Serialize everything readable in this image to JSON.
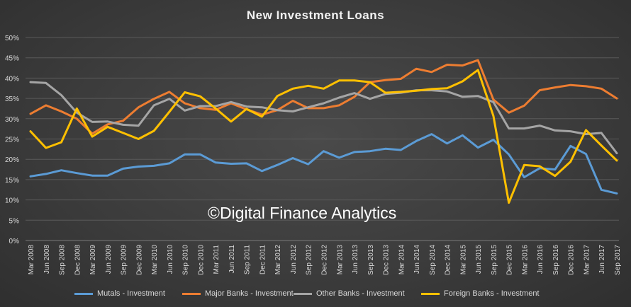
{
  "chart_data": {
    "type": "line",
    "title": "New Investment Loans",
    "xlabel": "",
    "ylabel": "",
    "ylim": [
      0,
      50
    ],
    "y_ticks": [
      "0%",
      "5%",
      "10%",
      "15%",
      "20%",
      "25%",
      "30%",
      "35%",
      "40%",
      "45%",
      "50%"
    ],
    "grid": "horizontal",
    "legend_position": "bottom",
    "categories": [
      "Mar 2008",
      "Jun 2008",
      "Sep 2008",
      "Dec 2008",
      "Mar 2009",
      "Jun 2009",
      "Sep 2009",
      "Dec 2009",
      "Mar 2010",
      "Jun 2010",
      "Sep 2010",
      "Dec 2010",
      "Mar 2011",
      "Jun 2011",
      "Sep 2011",
      "Dec 2011",
      "Mar 2012",
      "Jun 2012",
      "Sep 2012",
      "Dec 2012",
      "Mar 2013",
      "Jun 2013",
      "Sep 2013",
      "Dec 2013",
      "Mar 2014",
      "Jun 2014",
      "Sep 2014",
      "Dec 2014",
      "Mar 2015",
      "Jun 2015",
      "Sep 2015",
      "Dec 2015",
      "Mar 2016",
      "Jun 2016",
      "Sep 2016",
      "Dec 2016",
      "Mar 2017",
      "Jun 2017",
      "Sep 2017"
    ],
    "series": [
      {
        "name": "Mutals - Investment",
        "color": "#5b9bd5",
        "values": [
          15.8,
          16.4,
          17.3,
          16.6,
          16.0,
          16.0,
          17.7,
          18.2,
          18.4,
          19.0,
          21.2,
          21.2,
          19.2,
          18.9,
          19.0,
          17.1,
          18.6,
          20.3,
          18.8,
          22.0,
          20.4,
          21.8,
          22.0,
          22.6,
          22.3,
          24.5,
          26.2,
          23.9,
          25.9,
          22.9,
          24.8,
          21.2,
          15.6,
          17.8,
          17.5,
          23.3,
          21.3,
          12.5,
          11.6
        ]
      },
      {
        "name": "Major Banks - Investment",
        "color": "#ed7d31",
        "values": [
          31.2,
          33.3,
          31.8,
          30.0,
          26.3,
          28.6,
          29.5,
          32.8,
          34.9,
          36.6,
          33.8,
          32.6,
          32.2,
          33.8,
          32.3,
          31.0,
          32.1,
          34.4,
          32.6,
          32.6,
          33.3,
          35.4,
          39.0,
          39.5,
          39.8,
          42.3,
          41.5,
          43.3,
          43.1,
          44.4,
          34.7,
          31.5,
          33.2,
          37.0,
          37.7,
          38.3,
          38.0,
          37.4,
          35.0
        ]
      },
      {
        "name": "Other Banks - Investment",
        "color": "#a5a5a5",
        "values": [
          39.0,
          38.8,
          35.8,
          31.5,
          29.2,
          29.3,
          28.5,
          28.3,
          33.3,
          34.9,
          32.0,
          33.1,
          33.1,
          34.1,
          33.0,
          32.8,
          32.1,
          31.8,
          32.8,
          33.8,
          35.2,
          36.3,
          34.9,
          36.1,
          36.4,
          37.0,
          37.0,
          36.7,
          35.4,
          35.6,
          34.1,
          27.6,
          27.6,
          28.3,
          27.1,
          26.9,
          26.2,
          26.5,
          21.5
        ]
      },
      {
        "name": "Foreign Banks - Investment",
        "color": "#ffc000",
        "values": [
          26.9,
          22.8,
          24.2,
          32.5,
          25.6,
          28.0,
          26.5,
          25.0,
          27.0,
          31.7,
          36.5,
          35.5,
          32.5,
          29.3,
          32.4,
          30.5,
          35.6,
          37.4,
          38.1,
          37.4,
          39.4,
          39.4,
          39.0,
          36.4,
          36.6,
          36.9,
          37.3,
          37.5,
          39.2,
          42.0,
          30.7,
          9.3,
          18.6,
          18.3,
          15.9,
          19.4,
          27.2,
          23.4,
          19.7
        ]
      }
    ]
  },
  "watermark": "©Digital Finance Analytics"
}
